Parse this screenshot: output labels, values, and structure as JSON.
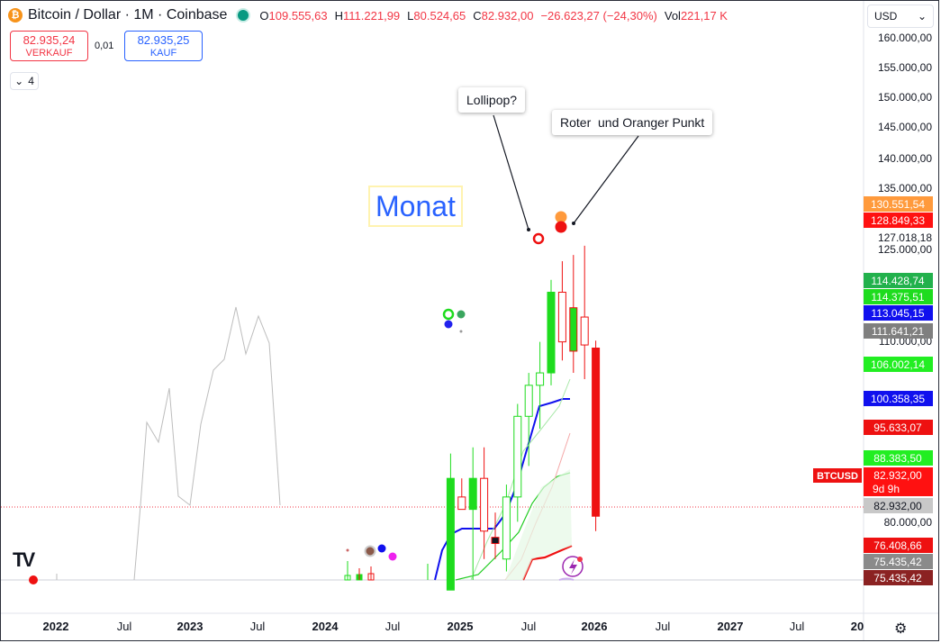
{
  "header": {
    "symbol": "Bitcoin / Dollar · 1M · Coinbase",
    "logo_letter": "₿",
    "ohlc": [
      {
        "key": "O",
        "value": "109.555,63"
      },
      {
        "key": "H",
        "value": "111.221,99"
      },
      {
        "key": "L",
        "value": "80.524,65"
      },
      {
        "key": "C",
        "value": "82.932,00"
      },
      {
        "key": "",
        "value": "−26.623,27 (−24,30%)"
      },
      {
        "key": "Vol",
        "value": "221,17 K"
      }
    ]
  },
  "trade": {
    "sell_price": "82.935,24",
    "sell_label": "VERKAUF",
    "spread": "0,01",
    "buy_price": "82.935,25",
    "buy_label": "KAUF"
  },
  "indicator_count": "4",
  "currency": "USD",
  "annotations": {
    "lollipop": "Lollipop?",
    "red_orange": "Roter  und Oranger Punkt",
    "monat": "Monat"
  },
  "tv_logo": "TV",
  "icons": {
    "settings": "settings-icon",
    "chevron": "chevron-down-icon",
    "bolt": "lightning-icon"
  },
  "chart_data": {
    "type": "candlestick",
    "y_axis": {
      "ticks": [
        "160.000,00",
        "155.000,00",
        "150.000,00",
        "145.000,00",
        "140.000,00",
        "135.000,00",
        "127.018,18",
        "125.000,00",
        "110.000,00",
        "80.000,00"
      ]
    },
    "x_axis": {
      "ticks": [
        "2022",
        "Jul",
        "2023",
        "Jul",
        "2024",
        "Jul",
        "2025",
        "Jul",
        "2026",
        "Jul",
        "2027",
        "Jul",
        "20"
      ]
    },
    "price_labels": [
      {
        "text": "130.551,54",
        "color": "#ff9a3c",
        "y": 130551.54
      },
      {
        "text": "128.849,33",
        "color": "#ff1111",
        "y": 128849.33
      },
      {
        "text": "114.428,74",
        "color": "#22b14c",
        "y": 114428.74
      },
      {
        "text": "114.375,51",
        "color": "#1edc1e",
        "y": 114375.51
      },
      {
        "text": "113.045,15",
        "color": "#1010ee",
        "y": 113045.15
      },
      {
        "text": "111.641,21",
        "color": "#7f7f7f",
        "y": 111641.21
      },
      {
        "text": "106.002,14",
        "color": "#22ee22",
        "y": 106002.14
      },
      {
        "text": "100.358,35",
        "color": "#1010ee",
        "y": 100358.35
      },
      {
        "text": "95.633,07",
        "color": "#ee1111",
        "y": 95633.07
      },
      {
        "text": "88.383,50",
        "color": "#22ee22",
        "y": 88383.5
      },
      {
        "text": "82.932,00",
        "color": "#ff1111",
        "y": 82932.0,
        "sub": "9d 9h"
      },
      {
        "text": "82.932,00",
        "color": "#c8c8c8",
        "y": 81150,
        "dark": true
      },
      {
        "text": "76.408,66",
        "color": "#ee1111",
        "y": 76408.66
      },
      {
        "text": "75.435,42",
        "color": "#8a8a8a",
        "y": 75435.42
      },
      {
        "text": "75.435,42",
        "color": "#8b2222",
        "y": 73300
      }
    ],
    "symbol_tag": "BTCUSD",
    "candles": [
      {
        "date": "2024-12",
        "o": 71000,
        "h": 93000,
        "l": 67000,
        "c": 89000
      },
      {
        "date": "2025-01",
        "o": 86000,
        "h": 89000,
        "l": 84000,
        "c": 84000
      },
      {
        "date": "2025-02",
        "o": 84000,
        "h": 94000,
        "l": 67000,
        "c": 89000
      },
      {
        "date": "2025-03",
        "o": 89000,
        "h": 94000,
        "l": 76000,
        "c": 80500
      },
      {
        "date": "2025-04",
        "o": 79500,
        "h": 83500,
        "l": 76000,
        "c": 78500
      },
      {
        "date": "2025-05",
        "o": 76000,
        "h": 88000,
        "l": 74000,
        "c": 86000
      },
      {
        "date": "2025-06",
        "o": 86000,
        "h": 101000,
        "l": 82000,
        "c": 99000
      },
      {
        "date": "2025-07",
        "o": 99000,
        "h": 106000,
        "l": 91000,
        "c": 104000
      },
      {
        "date": "2025-08",
        "o": 104000,
        "h": 111000,
        "l": 97000,
        "c": 106000
      },
      {
        "date": "2025-09",
        "o": 106000,
        "h": 121000,
        "l": 104000,
        "c": 119000
      },
      {
        "date": "2025-10",
        "o": 119000,
        "h": 124000,
        "l": 108000,
        "c": 111000
      },
      {
        "date": "2025-11",
        "o": 116500,
        "h": 125000,
        "l": 106000,
        "c": 109500
      },
      {
        "date": "2025-12",
        "o": 115000,
        "h": 126500,
        "l": 105000,
        "c": 110500
      },
      {
        "date": "2026-01",
        "o": 110000,
        "h": 111200,
        "l": 80500,
        "c": 82900
      }
    ]
  }
}
